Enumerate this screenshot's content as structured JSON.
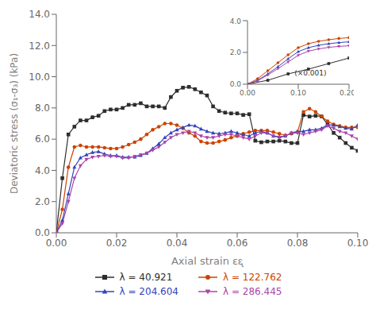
{
  "chart_data": [
    {
      "type": "line",
      "xlabel": "Axial strain εᶓ",
      "ylabel": "Deviatoric stress (σ₁-σ₃) (kPa)",
      "x": [
        0,
        0.002,
        0.004,
        0.006,
        0.008,
        0.01,
        0.012,
        0.014,
        0.016,
        0.018,
        0.02,
        0.022,
        0.024,
        0.026,
        0.028,
        0.03,
        0.032,
        0.034,
        0.036,
        0.038,
        0.04,
        0.042,
        0.044,
        0.046,
        0.048,
        0.05,
        0.052,
        0.054,
        0.056,
        0.058,
        0.06,
        0.062,
        0.064,
        0.066,
        0.068,
        0.07,
        0.072,
        0.074,
        0.076,
        0.078,
        0.08,
        0.082,
        0.084,
        0.086,
        0.088,
        0.09,
        0.092,
        0.094,
        0.096,
        0.098,
        0.1
      ],
      "xlim": [
        0.0,
        0.1
      ],
      "xticks": [
        {
          "value": 0,
          "label": "0.00"
        },
        {
          "value": 0.02,
          "label": "0.02"
        },
        {
          "value": 0.04,
          "label": "0.04"
        },
        {
          "value": 0.06,
          "label": "0.06"
        },
        {
          "value": 0.08,
          "label": "0.08"
        },
        {
          "value": 0.1,
          "label": "0.10"
        }
      ],
      "ylim": [
        0.0,
        14.0
      ],
      "yticks": [
        {
          "value": 0,
          "label": "0.0"
        },
        {
          "value": 2,
          "label": "2.0"
        },
        {
          "value": 4,
          "label": "4.0"
        },
        {
          "value": 6,
          "label": "6.0"
        },
        {
          "value": 8,
          "label": "8.0"
        },
        {
          "value": 10,
          "label": "10.0"
        },
        {
          "value": 12,
          "label": "12.0"
        },
        {
          "value": 14,
          "label": "14.0"
        }
      ],
      "grid": false,
      "legend": "bottom",
      "series": [
        {
          "name": "λ = 40.921",
          "color": "#2d2d2d",
          "marker": "square",
          "values": [
            0.0,
            3.5,
            6.3,
            6.8,
            7.2,
            7.2,
            7.4,
            7.5,
            7.8,
            7.9,
            7.9,
            8.0,
            8.2,
            8.2,
            8.3,
            8.1,
            8.1,
            8.1,
            8.0,
            8.7,
            9.1,
            9.3,
            9.35,
            9.2,
            9.0,
            8.8,
            8.1,
            7.8,
            7.7,
            7.65,
            7.65,
            7.55,
            7.6,
            5.9,
            5.8,
            5.85,
            5.85,
            5.9,
            5.85,
            5.75,
            5.75,
            7.55,
            7.45,
            7.5,
            7.45,
            6.95,
            6.4,
            6.1,
            5.75,
            5.45,
            5.25
          ]
        },
        {
          "name": "λ = 122.762",
          "color": "#cc4400",
          "marker": "circle",
          "values": [
            0.0,
            1.5,
            4.2,
            5.5,
            5.6,
            5.5,
            5.5,
            5.5,
            5.45,
            5.4,
            5.4,
            5.5,
            5.65,
            5.8,
            6.0,
            6.3,
            6.6,
            6.8,
            7.0,
            7.0,
            6.9,
            6.7,
            6.4,
            6.2,
            5.85,
            5.75,
            5.75,
            5.85,
            5.95,
            6.1,
            6.2,
            6.35,
            6.45,
            6.55,
            6.55,
            6.55,
            6.45,
            6.35,
            6.25,
            6.35,
            6.45,
            7.75,
            7.95,
            7.75,
            7.45,
            7.15,
            6.95,
            6.85,
            6.75,
            6.75,
            6.75
          ]
        },
        {
          "name": "λ = 204.604",
          "color": "#3344bb",
          "marker": "triangle",
          "values": [
            0.0,
            0.8,
            2.5,
            4.2,
            4.8,
            5.0,
            5.15,
            5.2,
            5.05,
            4.95,
            4.95,
            4.85,
            4.85,
            4.85,
            4.95,
            5.1,
            5.4,
            5.7,
            6.1,
            6.4,
            6.6,
            6.75,
            6.9,
            6.85,
            6.65,
            6.5,
            6.4,
            6.35,
            6.4,
            6.5,
            6.4,
            6.3,
            6.2,
            6.4,
            6.5,
            6.4,
            6.2,
            6.15,
            6.2,
            6.4,
            6.5,
            6.5,
            6.6,
            6.6,
            6.7,
            6.9,
            6.9,
            6.8,
            6.7,
            6.65,
            6.9
          ]
        },
        {
          "name": "λ = 286.445",
          "color": "#aa44aa",
          "marker": "triangle-down",
          "values": [
            0.0,
            0.6,
            2.0,
            3.5,
            4.3,
            4.7,
            4.85,
            4.9,
            4.95,
            4.9,
            4.9,
            4.8,
            4.8,
            4.9,
            5.0,
            5.1,
            5.3,
            5.5,
            5.8,
            6.1,
            6.3,
            6.4,
            6.5,
            6.4,
            6.2,
            6.1,
            6.1,
            6.2,
            6.3,
            6.3,
            6.2,
            6.1,
            6.0,
            6.2,
            6.4,
            6.4,
            6.2,
            6.1,
            6.2,
            6.4,
            6.4,
            6.3,
            6.4,
            6.5,
            6.6,
            6.85,
            6.7,
            6.5,
            6.4,
            6.2,
            6.0
          ]
        }
      ]
    },
    {
      "type": "line",
      "annotation": "(×0.001)",
      "xlim": [
        0.0,
        0.2
      ],
      "xticks": [
        {
          "value": 0,
          "label": "0.00"
        },
        {
          "value": 0.1,
          "label": "0.10"
        },
        {
          "value": 0.2,
          "label": "0.20"
        }
      ],
      "ylim": [
        0.0,
        4.0
      ],
      "yticks": [
        {
          "value": 0,
          "label": "0.0"
        },
        {
          "value": 2,
          "label": "2.0"
        },
        {
          "value": 4,
          "label": "4.0"
        }
      ],
      "grid": false,
      "series": [
        {
          "color": "#2d2d2d",
          "marker": "square",
          "x": [
            0.0,
            0.04,
            0.08,
            0.12,
            0.16,
            0.2
          ],
          "values": [
            0.0,
            0.25,
            0.65,
            0.95,
            1.3,
            1.65
          ]
        },
        {
          "color": "#cc4400",
          "marker": "circle",
          "x": [
            0.0,
            0.02,
            0.04,
            0.06,
            0.08,
            0.1,
            0.12,
            0.14,
            0.16,
            0.18,
            0.2
          ],
          "values": [
            0.0,
            0.35,
            0.85,
            1.35,
            1.85,
            2.3,
            2.55,
            2.7,
            2.8,
            2.88,
            2.93
          ]
        },
        {
          "color": "#3344bb",
          "marker": "triangle",
          "x": [
            0.0,
            0.02,
            0.04,
            0.06,
            0.08,
            0.1,
            0.12,
            0.14,
            0.16,
            0.18,
            0.2
          ],
          "values": [
            0.0,
            0.25,
            0.65,
            1.1,
            1.6,
            2.05,
            2.3,
            2.45,
            2.55,
            2.62,
            2.67
          ]
        },
        {
          "color": "#aa44aa",
          "marker": "triangle-down",
          "x": [
            0.0,
            0.02,
            0.04,
            0.06,
            0.08,
            0.1,
            0.12,
            0.14,
            0.16,
            0.18,
            0.2
          ],
          "values": [
            0.0,
            0.22,
            0.58,
            0.98,
            1.4,
            1.82,
            2.08,
            2.22,
            2.32,
            2.38,
            2.42
          ]
        }
      ]
    }
  ]
}
